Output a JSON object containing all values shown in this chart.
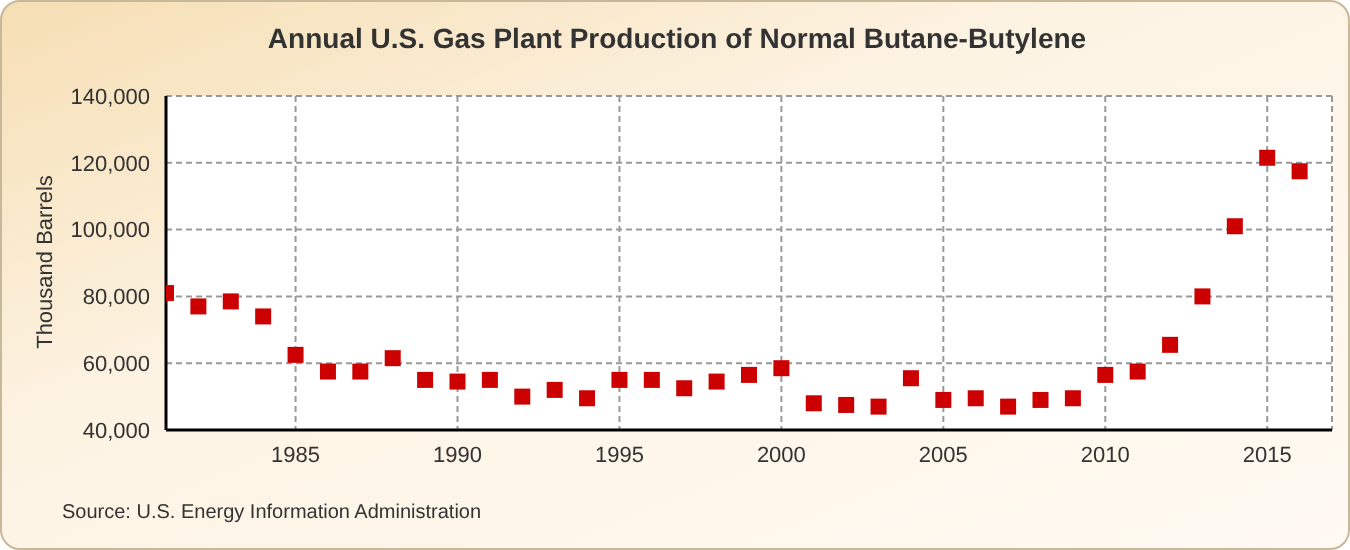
{
  "chart_data": {
    "type": "scatter",
    "title": "Annual U.S. Gas Plant Production of Normal Butane-Butylene",
    "ylabel": "Thousand Barrels",
    "annotations": [
      "Source: U.S. Energy Information Administration"
    ],
    "x": [
      1981,
      1982,
      1983,
      1984,
      1985,
      1986,
      1987,
      1988,
      1989,
      1990,
      1991,
      1992,
      1993,
      1994,
      1995,
      1996,
      1997,
      1998,
      1999,
      2000,
      2001,
      2002,
      2003,
      2004,
      2005,
      2006,
      2007,
      2008,
      2009,
      2010,
      2011,
      2012,
      2013,
      2014,
      2015,
      2016
    ],
    "series": [
      {
        "color": "#cc0000",
        "values": [
          81000,
          77000,
          78500,
          74000,
          62500,
          57500,
          57500,
          61500,
          55000,
          54500,
          55000,
          50000,
          52000,
          49500,
          55000,
          55000,
          52500,
          54500,
          56500,
          58500,
          48000,
          47500,
          47000,
          55500,
          49000,
          49500,
          47000,
          49000,
          49500,
          56500,
          57500,
          65500,
          80000,
          101000,
          121500,
          117500
        ]
      }
    ],
    "xlim": [
      1981,
      2017
    ],
    "xticks": [
      1985,
      1990,
      1995,
      2000,
      2005,
      2010,
      2015
    ],
    "ylim": [
      40000,
      140000
    ],
    "yticks": [
      {
        "value": 40000,
        "label": "40,000"
      },
      {
        "value": 60000,
        "label": "60,000"
      },
      {
        "value": 80000,
        "label": "80,000"
      },
      {
        "value": 100000,
        "label": "100,000"
      },
      {
        "value": 120000,
        "label": "120,000"
      },
      {
        "value": 140000,
        "label": "140,000"
      }
    ],
    "grid": true,
    "marker": "square"
  }
}
